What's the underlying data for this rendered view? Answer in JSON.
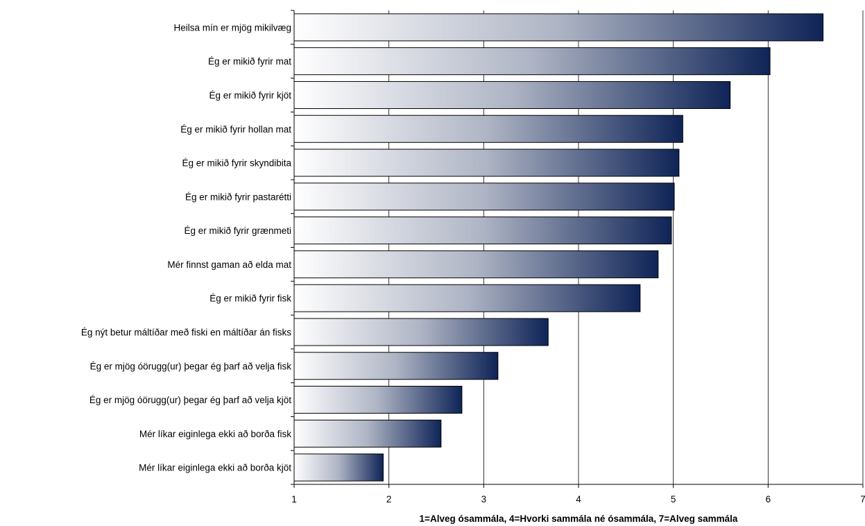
{
  "chart_data": {
    "type": "bar",
    "orientation": "horizontal",
    "title": "",
    "xlabel": "1=Alveg ósammála, 4=Hvorki sammála né ósammála, 7=Alveg sammála",
    "ylabel": "",
    "xlim": [
      1,
      7
    ],
    "xticks": [
      "1",
      "2",
      "3",
      "4",
      "5",
      "6",
      "7"
    ],
    "grid": "vertical",
    "legend": "none",
    "bar_gradient": [
      "#ffffff",
      "#0f2457"
    ],
    "categories": [
      "Heilsa mín er mjög mikilvæg",
      "Ég er mikið fyrir mat",
      "Ég er mikið fyrir kjöt",
      "Ég er mikið fyrir hollan mat",
      "Ég er mikið fyrir skyndibita",
      "Ég er mikið fyrir pastarétti",
      "Ég er mikið fyrir grænmeti",
      "Mér finnst gaman að elda mat",
      "Ég er mikið fyrir fisk",
      "Ég nýt betur máltíðar með fiski en máltíðar án fisks",
      "Ég er mjög óörugg(ur) þegar ég þarf að velja fisk",
      "Ég er mjög óörugg(ur) þegar ég þarf að velja kjöt",
      "Mér líkar eiginlega ekki að borða fisk",
      "Mér líkar eiginlega ekki að borða kjöt"
    ],
    "values": [
      6.58,
      6.02,
      5.6,
      5.1,
      5.06,
      5.01,
      4.98,
      4.84,
      4.65,
      3.68,
      3.15,
      2.77,
      2.55,
      1.94
    ]
  }
}
